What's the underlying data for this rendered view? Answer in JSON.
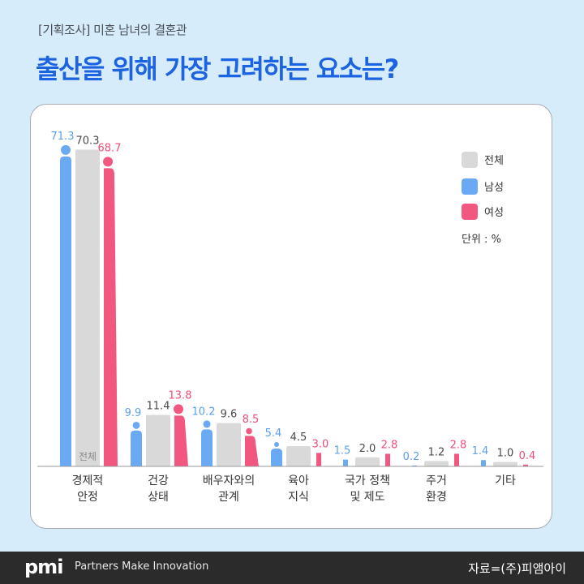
{
  "header": {
    "subtitle": "[기획조사] 미혼 남녀의 결혼관",
    "title": "출산을 위해 가장 고려하는 요소는?"
  },
  "footer": {
    "logo": "pmi",
    "tagline": "Partners Make Innovation",
    "source": "자료=(주)피앰아이"
  },
  "chart_data": {
    "type": "bar",
    "unit_label": "단위 : %",
    "total_bar_inner_label": "전체",
    "legend_position": "top-right",
    "categories": [
      [
        "경제적",
        "안정"
      ],
      [
        "건강",
        "상태"
      ],
      [
        "배우자와의",
        "관계"
      ],
      [
        "육아",
        "지식"
      ],
      [
        "국가 정책",
        "및 제도"
      ],
      [
        "주거",
        "환경"
      ],
      [
        "기타"
      ]
    ],
    "series": [
      {
        "name": "전체",
        "color": "#d9d9d9",
        "label_color": "#4a4a4a",
        "values": [
          "70.3",
          "11.4",
          "9.6",
          "4.5",
          "2.0",
          "1.2",
          "1.0"
        ]
      },
      {
        "name": "남성",
        "color": "#6aaaf5",
        "label_color": "#5b9ff2",
        "icon": "male-figure-icon",
        "values": [
          "71.3",
          "9.9",
          "10.2",
          "5.4",
          "1.5",
          "0.2",
          "1.4"
        ]
      },
      {
        "name": "여성",
        "color": "#f2577f",
        "label_color": "#ee4d79",
        "icon": "female-figure-icon",
        "values": [
          "68.7",
          "13.8",
          "8.5",
          "3.0",
          "2.8",
          "2.8",
          "0.4"
        ]
      }
    ],
    "ylim": [
      0,
      72
    ]
  }
}
